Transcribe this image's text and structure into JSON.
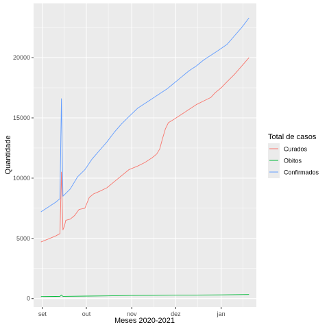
{
  "chart_data": {
    "type": "line",
    "title": "",
    "xlabel": "Meses 2020-2021",
    "ylabel": "Quantidade",
    "legend_title": "Total de casos",
    "legend_position": "right",
    "x_type": "date",
    "xlim": [
      "2020-08-26",
      "2021-01-25"
    ],
    "ylim": [
      -700,
      24500
    ],
    "x_ticks": [
      {
        "value": "2020-09-01",
        "label": "set"
      },
      {
        "value": "2020-10-01",
        "label": "out"
      },
      {
        "value": "2020-11-01",
        "label": "nov"
      },
      {
        "value": "2020-12-01",
        "label": "dez"
      },
      {
        "value": "2021-01-01",
        "label": "jan"
      }
    ],
    "y_ticks": [
      {
        "value": 0,
        "label": "0"
      },
      {
        "value": 5000,
        "label": "5000"
      },
      {
        "value": 10000,
        "label": "10000"
      },
      {
        "value": 15000,
        "label": "15000"
      },
      {
        "value": 20000,
        "label": "20000"
      }
    ],
    "grid": true,
    "series": [
      {
        "name": "Curados",
        "color": "#F8766D",
        "points": [
          [
            "2020-08-31",
            4700
          ],
          [
            "2020-09-05",
            4950
          ],
          [
            "2020-09-10",
            5200
          ],
          [
            "2020-09-13",
            5400
          ],
          [
            "2020-09-14",
            10500
          ],
          [
            "2020-09-15",
            5700
          ],
          [
            "2020-09-16",
            6000
          ],
          [
            "2020-09-17",
            6500
          ],
          [
            "2020-09-20",
            6600
          ],
          [
            "2020-09-23",
            6900
          ],
          [
            "2020-09-26",
            7400
          ],
          [
            "2020-09-30",
            7500
          ],
          [
            "2020-10-03",
            8400
          ],
          [
            "2020-10-06",
            8700
          ],
          [
            "2020-10-10",
            8900
          ],
          [
            "2020-10-15",
            9200
          ],
          [
            "2020-10-20",
            9700
          ],
          [
            "2020-10-25",
            10200
          ],
          [
            "2020-10-30",
            10700
          ],
          [
            "2020-11-05",
            11000
          ],
          [
            "2020-11-10",
            11300
          ],
          [
            "2020-11-15",
            11700
          ],
          [
            "2020-11-18",
            12000
          ],
          [
            "2020-11-20",
            12400
          ],
          [
            "2020-11-22",
            13300
          ],
          [
            "2020-11-24",
            14100
          ],
          [
            "2020-11-26",
            14600
          ],
          [
            "2020-11-30",
            14900
          ],
          [
            "2020-12-05",
            15300
          ],
          [
            "2020-12-10",
            15700
          ],
          [
            "2020-12-15",
            16100
          ],
          [
            "2020-12-20",
            16400
          ],
          [
            "2020-12-25",
            16700
          ],
          [
            "2020-12-28",
            17100
          ],
          [
            "2021-01-01",
            17500
          ],
          [
            "2021-01-05",
            18000
          ],
          [
            "2021-01-10",
            18600
          ],
          [
            "2021-01-15",
            19300
          ],
          [
            "2021-01-20",
            20000
          ]
        ]
      },
      {
        "name": "Obitos",
        "color": "#00BA38",
        "points": [
          [
            "2020-08-31",
            170
          ],
          [
            "2020-09-10",
            180
          ],
          [
            "2020-09-13",
            185
          ],
          [
            "2020-09-14",
            300
          ],
          [
            "2020-09-15",
            190
          ],
          [
            "2020-10-01",
            210
          ],
          [
            "2020-10-15",
            230
          ],
          [
            "2020-11-01",
            260
          ],
          [
            "2020-11-15",
            275
          ],
          [
            "2020-12-01",
            290
          ],
          [
            "2020-12-15",
            300
          ],
          [
            "2021-01-01",
            315
          ],
          [
            "2021-01-20",
            340
          ]
        ]
      },
      {
        "name": "Confirmados",
        "color": "#619CFF",
        "points": [
          [
            "2020-08-31",
            7200
          ],
          [
            "2020-09-05",
            7600
          ],
          [
            "2020-09-10",
            8000
          ],
          [
            "2020-09-13",
            8300
          ],
          [
            "2020-09-14",
            16600
          ],
          [
            "2020-09-15",
            8500
          ],
          [
            "2020-09-20",
            9100
          ],
          [
            "2020-09-25",
            10100
          ],
          [
            "2020-09-30",
            10700
          ],
          [
            "2020-10-05",
            11600
          ],
          [
            "2020-10-10",
            12300
          ],
          [
            "2020-10-15",
            13000
          ],
          [
            "2020-10-20",
            13800
          ],
          [
            "2020-10-25",
            14500
          ],
          [
            "2020-10-30",
            15100
          ],
          [
            "2020-11-05",
            15800
          ],
          [
            "2020-11-10",
            16200
          ],
          [
            "2020-11-15",
            16600
          ],
          [
            "2020-11-20",
            17000
          ],
          [
            "2020-11-25",
            17400
          ],
          [
            "2020-11-30",
            17900
          ],
          [
            "2020-12-05",
            18400
          ],
          [
            "2020-12-10",
            18900
          ],
          [
            "2020-12-15",
            19300
          ],
          [
            "2020-12-20",
            19800
          ],
          [
            "2020-12-25",
            20200
          ],
          [
            "2020-12-30",
            20600
          ],
          [
            "2021-01-05",
            21100
          ],
          [
            "2021-01-10",
            21800
          ],
          [
            "2021-01-15",
            22500
          ],
          [
            "2021-01-20",
            23300
          ]
        ]
      }
    ]
  }
}
